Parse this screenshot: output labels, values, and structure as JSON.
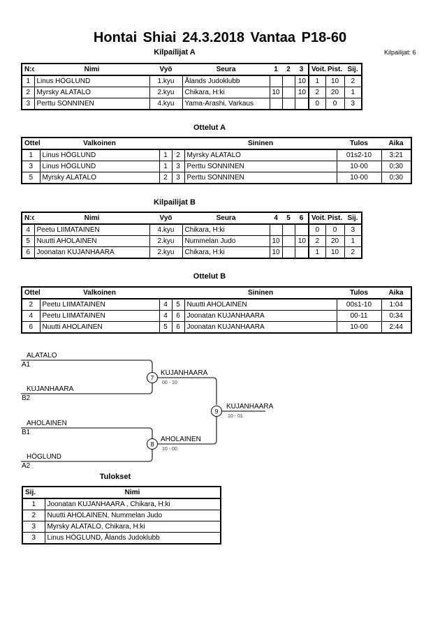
{
  "title": "Hontai Shiai  24.3.2018  Vantaa   P18-60",
  "participant_count": "Kilpailijat: 6",
  "pool_a": {
    "heading": "Kilpailijat A",
    "headers": [
      "N:o",
      "Nimi",
      "Vyö",
      "Seura",
      "1",
      "2",
      "3",
      "Voit.",
      "Pist.",
      "Sij."
    ],
    "rows": [
      [
        "1",
        "Linus HÖGLUND",
        "1.kyu",
        "Ålands Judoklubb",
        "",
        "",
        "10",
        "1",
        "10",
        "2"
      ],
      [
        "2",
        "Myrsky ALATALO",
        "2.kyu",
        "Chikara, H:ki",
        "10",
        "",
        "10",
        "2",
        "20",
        "1"
      ],
      [
        "3",
        "Perttu SONNINEN",
        "4.kyu",
        "Yama-Arashi, Varkaus",
        "",
        "",
        "",
        "0",
        "0",
        "3"
      ]
    ]
  },
  "matches_a": {
    "heading": "Ottelut A",
    "headers": [
      "Ottelu",
      "Valkoinen",
      "",
      "",
      "Sininen",
      "Tulos",
      "Aika"
    ],
    "rows": [
      [
        "1",
        "Linus HÖGLUND",
        "1",
        "2",
        "Myrsky ALATALO",
        "01s2-10",
        "3:21"
      ],
      [
        "3",
        "Linus HÖGLUND",
        "1",
        "3",
        "Perttu SONNINEN",
        "10-00",
        "0:30"
      ],
      [
        "5",
        "Myrsky ALATALO",
        "2",
        "3",
        "Perttu SONNINEN",
        "10-00",
        "0:30"
      ]
    ]
  },
  "pool_b": {
    "heading": "Kilpailijat B",
    "headers": [
      "N:o",
      "Nimi",
      "Vyö",
      "Seura",
      "4",
      "5",
      "6",
      "Voit.",
      "Pist.",
      "Sij."
    ],
    "rows": [
      [
        "4",
        "Peetu LIIMATAINEN",
        "4.kyu",
        "Chikara, H:ki",
        "",
        "",
        "",
        "0",
        "0",
        "3"
      ],
      [
        "5",
        "Nuutti AHOLAINEN",
        "2.kyu",
        "Nummelan Judo",
        "10",
        "",
        "10",
        "2",
        "20",
        "1"
      ],
      [
        "6",
        "Joonatan  KUJANHAARA",
        "2.kyu",
        "Chikara, H:ki",
        "10",
        "",
        "",
        "1",
        "10",
        "2"
      ]
    ]
  },
  "matches_b": {
    "heading": "Ottelut B",
    "headers": [
      "Ottelu",
      "Valkoinen",
      "",
      "",
      "Sininen",
      "Tulos",
      "Aika"
    ],
    "rows": [
      [
        "2",
        "Peetu LIIMATAINEN",
        "4",
        "5",
        "Nuutti AHOLAINEN",
        "00s1-10",
        "1:04"
      ],
      [
        "4",
        "Peetu LIIMATAINEN",
        "4",
        "6",
        "Joonatan  KUJANHAARA",
        "00-11",
        "0:34"
      ],
      [
        "6",
        "Nuutti AHOLAINEN",
        "5",
        "6",
        "Joonatan  KUJANHAARA",
        "10-00",
        "2:44"
      ]
    ]
  },
  "bracket": {
    "entrants": [
      {
        "name": "ALATALO",
        "seed": "A1"
      },
      {
        "name": "KUJANHAARA",
        "seed": "B2"
      },
      {
        "name": "AHOLAINEN",
        "seed": "B1"
      },
      {
        "name": "HÖGLUND",
        "seed": "A2"
      }
    ],
    "matches": [
      {
        "num": "7",
        "winner": "KUJANHAARA",
        "score": "00 - 10"
      },
      {
        "num": "8",
        "winner": "AHOLAINEN",
        "score": "10 - 00"
      },
      {
        "num": "9",
        "winner": "KUJANHAARA",
        "score": "10 - 01"
      }
    ]
  },
  "results": {
    "heading": "Tulokset",
    "headers": [
      "Sij.",
      "Nimi"
    ],
    "rows": [
      [
        "1",
        "Joonatan  KUJANHAARA , Chikara, H:ki"
      ],
      [
        "2",
        "Nuutti AHOLAINEN, Nummelan Judo"
      ],
      [
        "3",
        "Myrsky ALATALO, Chikara, H:ki"
      ],
      [
        "3",
        "Linus HÖGLUND, Ålands Judoklubb"
      ]
    ]
  }
}
